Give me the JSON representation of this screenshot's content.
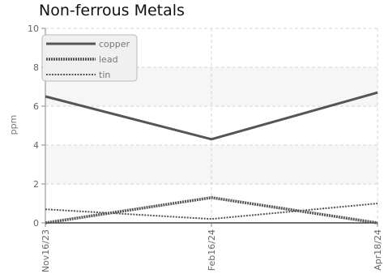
{
  "chart_data": {
    "type": "line",
    "title": "Non-ferrous Metals",
    "xlabel": "",
    "ylabel": "ppm",
    "categories": [
      "Nov16/23",
      "Feb16/24",
      "Apr18/24"
    ],
    "ylim": [
      0,
      10
    ],
    "yticks": [
      "0",
      "2",
      "4",
      "6",
      "8",
      "10"
    ],
    "grid": true,
    "legend_position": "top-left",
    "series": [
      {
        "name": "copper",
        "values": [
          6.5,
          4.3,
          6.7
        ],
        "color": "#555555",
        "style": "solid"
      },
      {
        "name": "lead",
        "values": [
          0.0,
          1.3,
          0.0
        ],
        "color": "#555555",
        "style": "dotted-thick"
      },
      {
        "name": "tin",
        "values": [
          0.7,
          0.2,
          1.0
        ],
        "color": "#555555",
        "style": "dotted-thin"
      }
    ]
  }
}
